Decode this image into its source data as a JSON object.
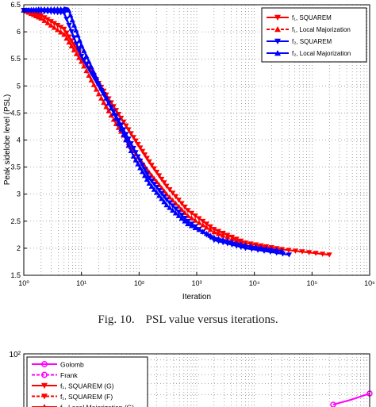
{
  "chart_data": [
    {
      "type": "line",
      "x_scale": "log",
      "xlabel": "Iteration",
      "ylabel": "Peak sidelobe level (PSL)",
      "xlim": [
        1,
        1000000
      ],
      "ylim": [
        1.5,
        6.5
      ],
      "grid": true,
      "legend_position": "top-right",
      "x_tick_labels": [
        "10⁰",
        "10¹",
        "10²",
        "10³",
        "10⁴",
        "10⁵",
        "10⁶"
      ],
      "y_tick_labels": [
        "1.5",
        "2",
        "2.5",
        "3",
        "3.5",
        "4",
        "4.5",
        "5",
        "5.5",
        "6",
        "6.5"
      ],
      "series": [
        {
          "name": "f₁, SQUAREM",
          "color": "#ff0000",
          "marker": "triangle-down",
          "line": "solid",
          "x": [
            1,
            2,
            5,
            10,
            20,
            40,
            80,
            150,
            300,
            700,
            2000,
            7000,
            30000,
            200000
          ],
          "y": [
            6.4,
            6.3,
            6.05,
            5.55,
            5.05,
            4.55,
            4.05,
            3.6,
            3.15,
            2.7,
            2.35,
            2.1,
            1.98,
            1.88
          ]
        },
        {
          "name": "f₁, Local Majorization",
          "color": "#ff0000",
          "marker": "triangle-up",
          "line": "dashed",
          "x": [
            1,
            2,
            5,
            10,
            20,
            40,
            80,
            150,
            300,
            700,
            2000,
            7000,
            30000
          ],
          "y": [
            6.4,
            6.25,
            5.95,
            5.45,
            4.85,
            4.3,
            3.8,
            3.4,
            3.0,
            2.6,
            2.3,
            2.08,
            1.96
          ]
        },
        {
          "name": "f₂, SQUAREM",
          "color": "#0000ff",
          "marker": "triangle-down",
          "line": "solid",
          "x": [
            1,
            2,
            5,
            10,
            20,
            40,
            80,
            150,
            300,
            700,
            2000,
            7000,
            40000
          ],
          "y": [
            6.4,
            6.38,
            6.35,
            5.55,
            5.0,
            4.45,
            3.85,
            3.3,
            2.9,
            2.5,
            2.15,
            2.0,
            1.88
          ]
        },
        {
          "name": "f₂, Local Majorization",
          "color": "#0000ff",
          "marker": "triangle-up",
          "line": "solid",
          "x": [
            1,
            2,
            5,
            6,
            10,
            20,
            40,
            80,
            150,
            300,
            700,
            2000,
            7000,
            30000
          ],
          "y": [
            6.4,
            6.42,
            6.42,
            6.4,
            5.75,
            5.05,
            4.4,
            3.7,
            3.2,
            2.8,
            2.45,
            2.2,
            2.05,
            1.95
          ]
        }
      ]
    },
    {
      "type": "line",
      "x_scale": "log",
      "y_scale": "log",
      "y_top_label": "10²",
      "grid": true,
      "legend_position": "top-left",
      "series": [
        {
          "name": "Golomb",
          "color": "#ff00ff",
          "marker": "circle",
          "line": "solid"
        },
        {
          "name": "Frank",
          "color": "#ff00ff",
          "marker": "circle",
          "line": "dashed"
        },
        {
          "name": "f₁, SQUAREM (G)",
          "color": "#ff0000",
          "marker": "triangle-down",
          "line": "solid"
        },
        {
          "name": "f₁, SQUAREM (F)",
          "color": "#ff0000",
          "marker": "triangle-down",
          "line": "dashed"
        },
        {
          "name": "f₁, Local Majorization (G)",
          "color": "#ff0000",
          "marker": "triangle-up",
          "line": "solid"
        }
      ]
    }
  ],
  "captions": {
    "fig1_number": "Fig. 10.",
    "fig1_text": "PSL value versus iterations."
  }
}
